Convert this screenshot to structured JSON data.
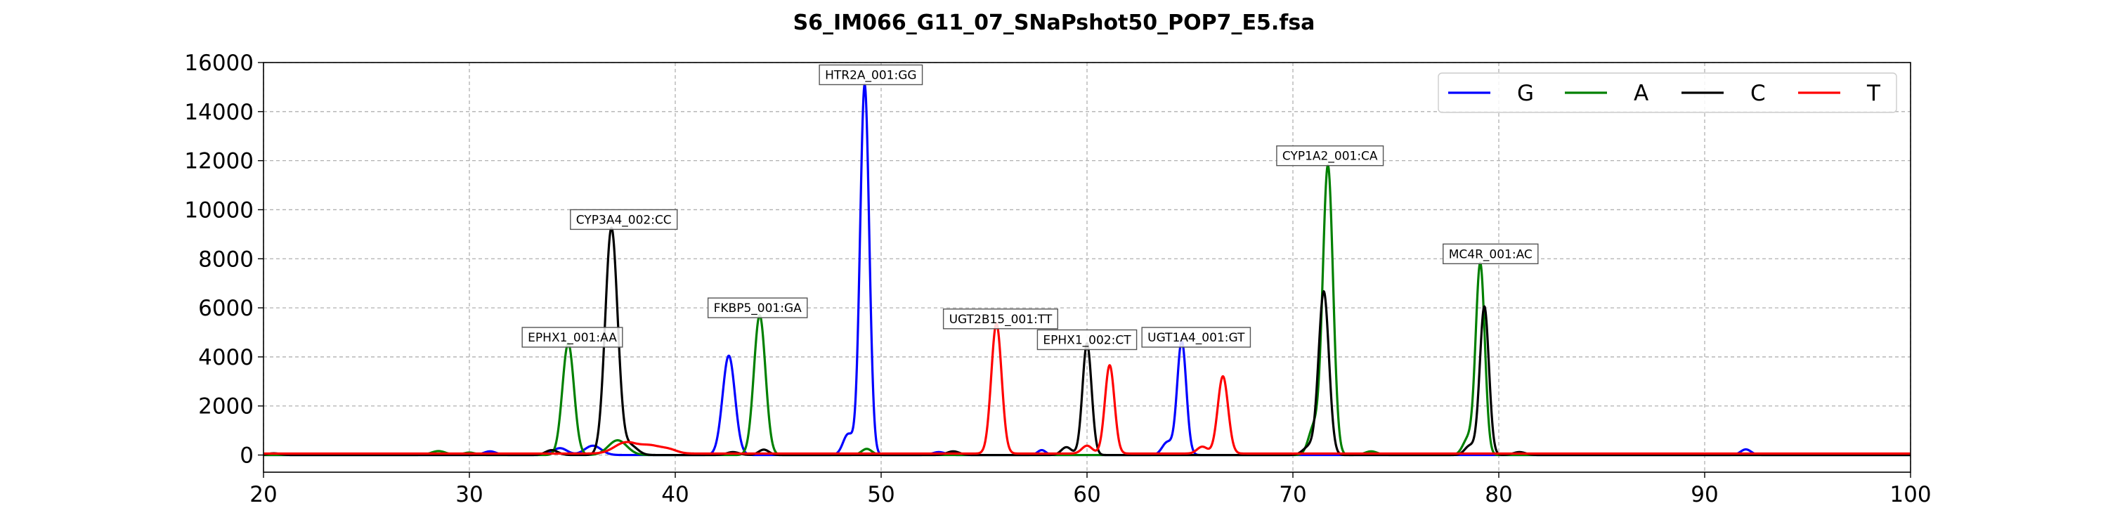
{
  "chart_data": {
    "type": "line",
    "title": "S6_IM066_G11_07_SNaPshot50_POP7_E5.fsa",
    "xlabel": "",
    "ylabel": "",
    "xlim": [
      20,
      100
    ],
    "ylim": [
      -700,
      16000
    ],
    "x_ticks": [
      20,
      30,
      40,
      50,
      60,
      70,
      80,
      90,
      100
    ],
    "y_ticks": [
      0,
      2000,
      4000,
      6000,
      8000,
      10000,
      12000,
      14000,
      16000
    ],
    "grid": true,
    "legend_position": "top-right",
    "series": [
      {
        "name": "G",
        "color": "#0000ff",
        "baseline": 0,
        "peaks": [
          [
            31,
            150,
            0.3
          ],
          [
            34.4,
            280,
            0.35
          ],
          [
            36,
            380,
            0.4
          ],
          [
            42.6,
            4050,
            0.3
          ],
          [
            48.4,
            850,
            0.25
          ],
          [
            49.2,
            15100,
            0.22
          ],
          [
            52.8,
            120,
            0.3
          ],
          [
            57.8,
            200,
            0.2
          ],
          [
            63.9,
            520,
            0.25
          ],
          [
            64.6,
            4650,
            0.22
          ],
          [
            92,
            230,
            0.25
          ]
        ]
      },
      {
        "name": "A",
        "color": "#008000",
        "baseline": 0,
        "peaks": [
          [
            28.5,
            160,
            0.35
          ],
          [
            30,
            100,
            0.3
          ],
          [
            34.8,
            4550,
            0.28
          ],
          [
            37.2,
            600,
            0.45
          ],
          [
            44.1,
            5700,
            0.28
          ],
          [
            49.3,
            250,
            0.25
          ],
          [
            71,
            1100,
            0.25
          ],
          [
            71.7,
            11800,
            0.25
          ],
          [
            73.8,
            150,
            0.3
          ],
          [
            78.5,
            650,
            0.25
          ],
          [
            79.1,
            7800,
            0.22
          ]
        ]
      },
      {
        "name": "C",
        "color": "#000000",
        "baseline": 0,
        "peaks": [
          [
            20.5,
            70,
            0.3
          ],
          [
            34,
            200,
            0.3
          ],
          [
            36.9,
            9250,
            0.3
          ],
          [
            37.8,
            400,
            0.35
          ],
          [
            42.8,
            120,
            0.3
          ],
          [
            44.3,
            220,
            0.25
          ],
          [
            53.5,
            150,
            0.3
          ],
          [
            59,
            320,
            0.25
          ],
          [
            60,
            4550,
            0.22
          ],
          [
            70.8,
            350,
            0.3
          ],
          [
            71.5,
            6650,
            0.25
          ],
          [
            78.6,
            380,
            0.25
          ],
          [
            79.3,
            6050,
            0.22
          ],
          [
            81,
            120,
            0.3
          ]
        ]
      },
      {
        "name": "T",
        "color": "#ff0000",
        "baseline": 60,
        "peaks": [
          [
            37.6,
            450,
            0.55
          ],
          [
            38.8,
            300,
            0.5
          ],
          [
            39.7,
            150,
            0.4
          ],
          [
            55.6,
            5300,
            0.25
          ],
          [
            60,
            320,
            0.25
          ],
          [
            61.1,
            3600,
            0.23
          ],
          [
            65.6,
            280,
            0.25
          ],
          [
            66.6,
            3150,
            0.25
          ]
        ]
      }
    ],
    "annotations": [
      {
        "text": "EPHX1_001:AA",
        "x": 35,
        "y": 4800
      },
      {
        "text": "CYP3A4_002:CC",
        "x": 37.5,
        "y": 9600
      },
      {
        "text": "FKBP5_001:GA",
        "x": 44,
        "y": 6000
      },
      {
        "text": "HTR2A_001:GG",
        "x": 49.5,
        "y": 15500
      },
      {
        "text": "UGT2B15_001:TT",
        "x": 55.8,
        "y": 5550
      },
      {
        "text": "EPHX1_002:CT",
        "x": 60,
        "y": 4700
      },
      {
        "text": "UGT1A4_001:GT",
        "x": 65.3,
        "y": 4800
      },
      {
        "text": "CYP1A2_001:CA",
        "x": 71.8,
        "y": 12200
      },
      {
        "text": "MC4R_001:AC",
        "x": 79.6,
        "y": 8200
      }
    ]
  }
}
